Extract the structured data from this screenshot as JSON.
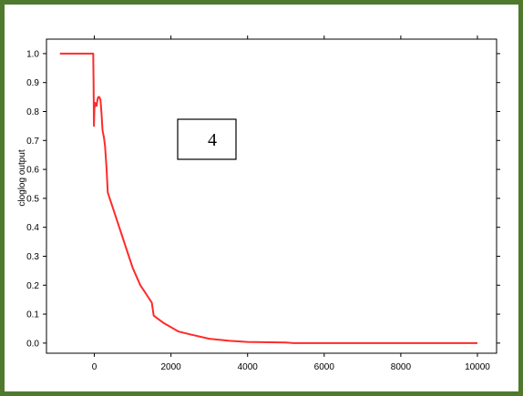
{
  "chart_data": {
    "type": "line",
    "title": "",
    "xlabel": "",
    "ylabel": "cloglog output",
    "xlim": [
      -1250,
      10500
    ],
    "ylim": [
      -0.035,
      1.05
    ],
    "xticks": [
      0,
      2000,
      4000,
      6000,
      8000,
      10000
    ],
    "yticks": [
      0.0,
      0.1,
      0.2,
      0.3,
      0.4,
      0.5,
      0.6,
      0.7,
      0.8,
      0.9,
      1.0
    ],
    "ytick_labels": [
      "0.0",
      "0.1",
      "0.2",
      "0.3",
      "0.4",
      "0.5",
      "0.6",
      "0.7",
      "0.8",
      "0.9",
      "1.0"
    ],
    "grid": false,
    "annotation": {
      "text": "4"
    },
    "series": [
      {
        "color": "#ff2a2a",
        "x": [
          -900,
          -30,
          -20,
          -10,
          0,
          20,
          40,
          60,
          80,
          100,
          130,
          160,
          190,
          210,
          220,
          250,
          280,
          320,
          340,
          350,
          400,
          500,
          600,
          700,
          800,
          900,
          1000,
          1100,
          1200,
          1300,
          1400,
          1500,
          1520,
          1550,
          1600,
          1800,
          2000,
          2200,
          2500,
          3000,
          3500,
          4000,
          5000,
          5200,
          6000,
          7000,
          8000,
          10000
        ],
        "y": [
          1.0,
          1.0,
          0.9,
          0.75,
          0.81,
          0.83,
          0.82,
          0.82,
          0.84,
          0.85,
          0.85,
          0.84,
          0.79,
          0.74,
          0.73,
          0.71,
          0.68,
          0.6,
          0.55,
          0.52,
          0.5,
          0.46,
          0.42,
          0.38,
          0.34,
          0.3,
          0.26,
          0.23,
          0.2,
          0.18,
          0.16,
          0.14,
          0.12,
          0.095,
          0.09,
          0.07,
          0.055,
          0.04,
          0.03,
          0.015,
          0.008,
          0.004,
          0.002,
          0.0,
          0.0,
          0.0,
          0.0,
          0.0
        ]
      }
    ]
  }
}
